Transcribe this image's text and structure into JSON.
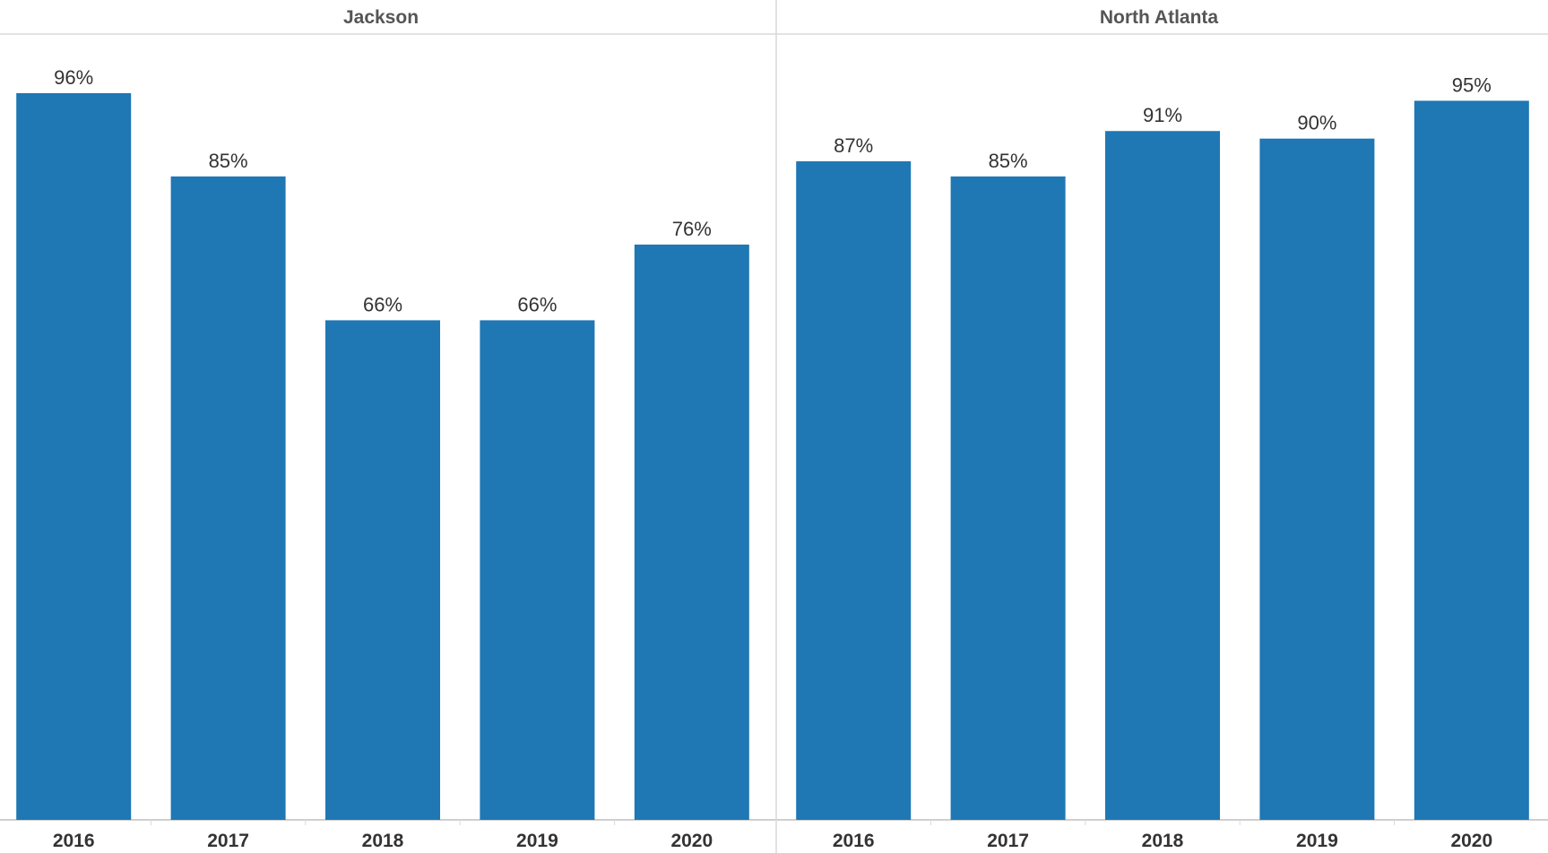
{
  "chart_data": [
    {
      "type": "bar",
      "title": "Jackson",
      "categories": [
        "2016",
        "2017",
        "2018",
        "2019",
        "2020"
      ],
      "values": [
        96,
        85,
        66,
        66,
        76
      ],
      "value_labels": [
        "96%",
        "85%",
        "66%",
        "66%",
        "76%"
      ],
      "unit": "%",
      "ylim": [
        0,
        100
      ],
      "grid": false,
      "color": "#1F77B4"
    },
    {
      "type": "bar",
      "title": "North Atlanta",
      "categories": [
        "2016",
        "2017",
        "2018",
        "2019",
        "2020"
      ],
      "values": [
        87,
        85,
        91,
        90,
        95
      ],
      "value_labels": [
        "87%",
        "85%",
        "91%",
        "90%",
        "95%"
      ],
      "unit": "%",
      "ylim": [
        0,
        100
      ],
      "grid": false,
      "color": "#1F77B4"
    }
  ]
}
